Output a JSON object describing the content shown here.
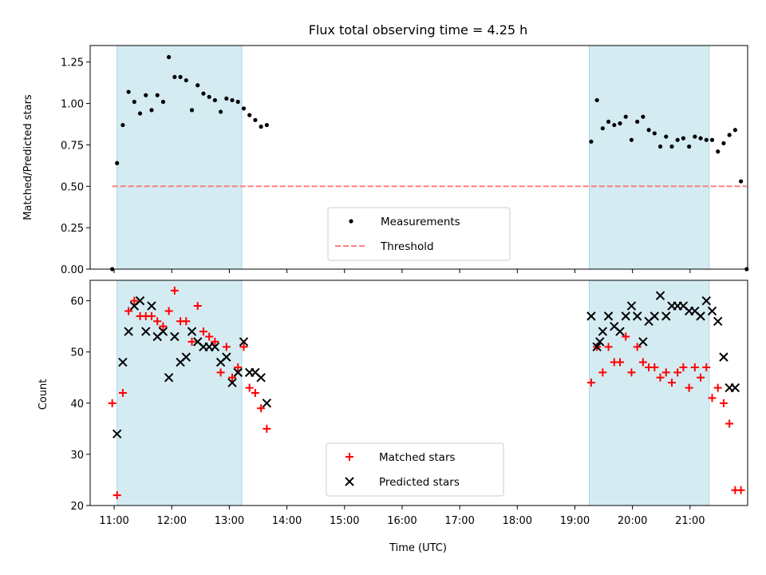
{
  "chart_data": [
    {
      "type": "scatter",
      "title": "Flux total observing time = 4.25 h",
      "xlabel": "",
      "ylabel": "Matched/Predicted stars",
      "xlim": [
        "10:35",
        "22:00"
      ],
      "ylim": [
        0,
        1.35
      ],
      "yticks": [
        "0.00",
        "0.25",
        "0.50",
        "0.75",
        "1.00",
        "1.25"
      ],
      "grid": false,
      "legend_position": "lower center",
      "shaded_intervals": [
        [
          "11:03",
          "13:13"
        ],
        [
          "19:15",
          "21:20"
        ]
      ],
      "series": [
        {
          "name": "Measurements",
          "marker": "dot",
          "color": "#000000",
          "points": [
            [
              "10:58",
              0.0
            ],
            [
              "11:03",
              0.64
            ],
            [
              "11:09",
              0.87
            ],
            [
              "11:15",
              1.07
            ],
            [
              "11:21",
              1.01
            ],
            [
              "11:27",
              0.94
            ],
            [
              "11:33",
              1.05
            ],
            [
              "11:39",
              0.96
            ],
            [
              "11:45",
              1.05
            ],
            [
              "11:51",
              1.01
            ],
            [
              "11:57",
              1.28
            ],
            [
              "12:03",
              1.16
            ],
            [
              "12:09",
              1.16
            ],
            [
              "12:15",
              1.14
            ],
            [
              "12:21",
              0.96
            ],
            [
              "12:27",
              1.11
            ],
            [
              "12:33",
              1.06
            ],
            [
              "12:39",
              1.04
            ],
            [
              "12:45",
              1.02
            ],
            [
              "12:51",
              0.95
            ],
            [
              "12:57",
              1.03
            ],
            [
              "13:03",
              1.02
            ],
            [
              "13:09",
              1.01
            ],
            [
              "13:15",
              0.97
            ],
            [
              "13:21",
              0.93
            ],
            [
              "13:27",
              0.9
            ],
            [
              "13:33",
              0.86
            ],
            [
              "13:39",
              0.87
            ],
            [
              "19:17",
              0.77
            ],
            [
              "19:23",
              1.02
            ],
            [
              "19:29",
              0.85
            ],
            [
              "19:35",
              0.89
            ],
            [
              "19:41",
              0.87
            ],
            [
              "19:47",
              0.88
            ],
            [
              "19:53",
              0.92
            ],
            [
              "19:59",
              0.78
            ],
            [
              "20:05",
              0.89
            ],
            [
              "20:11",
              0.92
            ],
            [
              "20:17",
              0.84
            ],
            [
              "20:23",
              0.82
            ],
            [
              "20:29",
              0.74
            ],
            [
              "20:35",
              0.8
            ],
            [
              "20:41",
              0.74
            ],
            [
              "20:47",
              0.78
            ],
            [
              "20:53",
              0.79
            ],
            [
              "20:59",
              0.74
            ],
            [
              "21:05",
              0.8
            ],
            [
              "21:11",
              0.79
            ],
            [
              "21:17",
              0.78
            ],
            [
              "21:23",
              0.78
            ],
            [
              "21:29",
              0.71
            ],
            [
              "21:35",
              0.76
            ],
            [
              "21:41",
              0.81
            ],
            [
              "21:47",
              0.84
            ],
            [
              "21:53",
              0.53
            ],
            [
              "21:59",
              0.0
            ]
          ]
        },
        {
          "name": "Threshold",
          "marker": "dashed-line",
          "color": "#ff7f7f",
          "points": [
            [
              "10:58",
              0.5
            ],
            [
              "21:59",
              0.5
            ]
          ]
        }
      ]
    },
    {
      "type": "scatter",
      "title": "",
      "xlabel": "Time (UTC)",
      "ylabel": "Count",
      "xlim": [
        "10:35",
        "22:00"
      ],
      "ylim": [
        20,
        64
      ],
      "yticks": [
        "20",
        "30",
        "40",
        "50",
        "60"
      ],
      "xticks": [
        "11:00",
        "12:00",
        "13:00",
        "14:00",
        "15:00",
        "16:00",
        "17:00",
        "18:00",
        "19:00",
        "20:00",
        "21:00"
      ],
      "grid": false,
      "legend_position": "lower center",
      "shaded_intervals": [
        [
          "11:03",
          "13:13"
        ],
        [
          "19:15",
          "21:20"
        ]
      ],
      "series": [
        {
          "name": "Matched stars",
          "marker": "plus",
          "color": "#ff0000",
          "points": [
            [
              "10:58",
              40
            ],
            [
              "11:03",
              22
            ],
            [
              "11:09",
              42
            ],
            [
              "11:15",
              58
            ],
            [
              "11:21",
              60
            ],
            [
              "11:27",
              57
            ],
            [
              "11:33",
              57
            ],
            [
              "11:39",
              57
            ],
            [
              "11:45",
              56
            ],
            [
              "11:51",
              55
            ],
            [
              "11:57",
              58
            ],
            [
              "12:03",
              62
            ],
            [
              "12:09",
              56
            ],
            [
              "12:15",
              56
            ],
            [
              "12:21",
              52
            ],
            [
              "12:27",
              59
            ],
            [
              "12:33",
              54
            ],
            [
              "12:39",
              53
            ],
            [
              "12:45",
              52
            ],
            [
              "12:51",
              46
            ],
            [
              "12:57",
              51
            ],
            [
              "13:03",
              45
            ],
            [
              "13:09",
              47
            ],
            [
              "13:15",
              51
            ],
            [
              "13:21",
              43
            ],
            [
              "13:27",
              42
            ],
            [
              "13:33",
              39
            ],
            [
              "13:39",
              35
            ],
            [
              "19:17",
              44
            ],
            [
              "19:23",
              51
            ],
            [
              "19:29",
              46
            ],
            [
              "19:35",
              51
            ],
            [
              "19:41",
              48
            ],
            [
              "19:47",
              48
            ],
            [
              "19:53",
              53
            ],
            [
              "19:59",
              46
            ],
            [
              "20:05",
              51
            ],
            [
              "20:11",
              48
            ],
            [
              "20:17",
              47
            ],
            [
              "20:23",
              47
            ],
            [
              "20:29",
              45
            ],
            [
              "20:35",
              46
            ],
            [
              "20:41",
              44
            ],
            [
              "20:47",
              46
            ],
            [
              "20:53",
              47
            ],
            [
              "20:59",
              43
            ],
            [
              "21:05",
              47
            ],
            [
              "21:11",
              45
            ],
            [
              "21:17",
              47
            ],
            [
              "21:23",
              41
            ],
            [
              "21:29",
              43
            ],
            [
              "21:35",
              40
            ],
            [
              "21:41",
              36
            ],
            [
              "21:47",
              23
            ],
            [
              "21:53",
              23
            ]
          ]
        },
        {
          "name": "Predicted stars",
          "marker": "x",
          "color": "#000000",
          "points": [
            [
              "11:03",
              34
            ],
            [
              "11:09",
              48
            ],
            [
              "11:15",
              54
            ],
            [
              "11:21",
              59
            ],
            [
              "11:27",
              60
            ],
            [
              "11:33",
              54
            ],
            [
              "11:39",
              59
            ],
            [
              "11:45",
              53
            ],
            [
              "11:51",
              54
            ],
            [
              "11:57",
              45
            ],
            [
              "12:03",
              53
            ],
            [
              "12:09",
              48
            ],
            [
              "12:15",
              49
            ],
            [
              "12:21",
              54
            ],
            [
              "12:27",
              52
            ],
            [
              "12:33",
              51
            ],
            [
              "12:39",
              51
            ],
            [
              "12:45",
              51
            ],
            [
              "12:51",
              48
            ],
            [
              "12:57",
              49
            ],
            [
              "13:03",
              44
            ],
            [
              "13:09",
              46
            ],
            [
              "13:15",
              52
            ],
            [
              "13:21",
              46
            ],
            [
              "13:27",
              46
            ],
            [
              "13:33",
              45
            ],
            [
              "13:39",
              40
            ],
            [
              "19:17",
              57
            ],
            [
              "19:23",
              51
            ],
            [
              "19:26",
              52
            ],
            [
              "19:29",
              54
            ],
            [
              "19:35",
              57
            ],
            [
              "19:41",
              55
            ],
            [
              "19:47",
              54
            ],
            [
              "19:53",
              57
            ],
            [
              "19:59",
              59
            ],
            [
              "20:05",
              57
            ],
            [
              "20:11",
              52
            ],
            [
              "20:17",
              56
            ],
            [
              "20:23",
              57
            ],
            [
              "20:29",
              61
            ],
            [
              "20:35",
              57
            ],
            [
              "20:41",
              59
            ],
            [
              "20:47",
              59
            ],
            [
              "20:53",
              59
            ],
            [
              "20:59",
              58
            ],
            [
              "21:05",
              58
            ],
            [
              "21:11",
              57
            ],
            [
              "21:17",
              60
            ],
            [
              "21:23",
              58
            ],
            [
              "21:29",
              56
            ],
            [
              "21:35",
              49
            ],
            [
              "21:41",
              43
            ],
            [
              "21:47",
              43
            ]
          ]
        }
      ]
    }
  ]
}
